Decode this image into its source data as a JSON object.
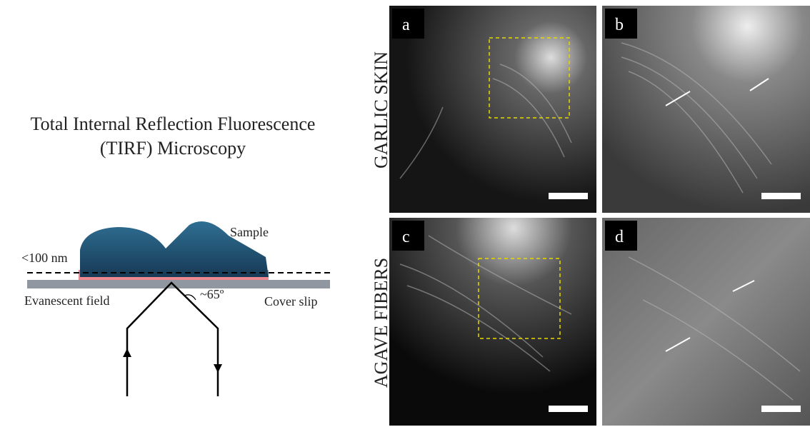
{
  "title": {
    "line1": "Total Internal Reflection Fluorescence",
    "line2": "(TIRF) Microscopy"
  },
  "diagram": {
    "sample": "Sample",
    "depth": "<100 nm",
    "field": "Evanescent field",
    "angle": "~65º",
    "slip": "Cover slip"
  },
  "rows": [
    "GARLIC SKIN",
    "AGAVE FIBERS"
  ],
  "panels": [
    "a",
    "b",
    "c",
    "d"
  ]
}
